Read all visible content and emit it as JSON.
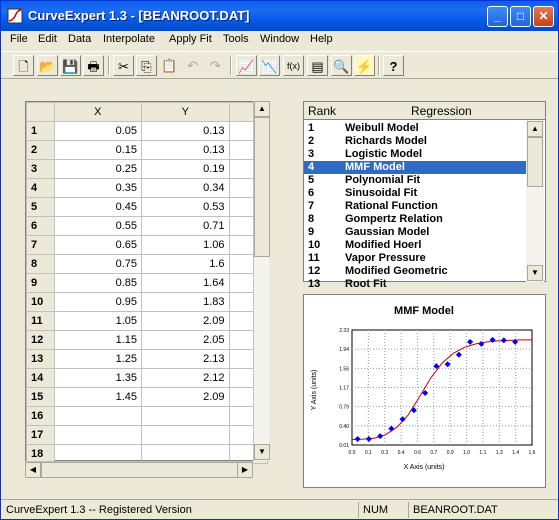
{
  "window": {
    "title": "CurveExpert 1.3 - [BEANROOT.DAT]"
  },
  "menu": [
    "File",
    "Edit",
    "Data",
    "Interpolate",
    "Apply Fit",
    "Tools",
    "Window",
    "Help"
  ],
  "toolbar": {
    "icons": [
      "new-file-icon",
      "open-folder-icon",
      "save-icon",
      "print-icon",
      "cut-icon",
      "copy-icon",
      "paste-icon",
      "undo-icon",
      "redo-icon",
      "linear-fit-icon",
      "polynomial-fit-icon",
      "function-fit-icon",
      "plot-tool-icon",
      "zoom-plot-icon",
      "curve-finder-icon",
      "help-icon"
    ]
  },
  "grid": {
    "headers": [
      "X",
      "Y"
    ],
    "rows": [
      {
        "n": "1",
        "x": "0.05",
        "y": "0.13"
      },
      {
        "n": "2",
        "x": "0.15",
        "y": "0.13"
      },
      {
        "n": "3",
        "x": "0.25",
        "y": "0.19"
      },
      {
        "n": "4",
        "x": "0.35",
        "y": "0.34"
      },
      {
        "n": "5",
        "x": "0.45",
        "y": "0.53"
      },
      {
        "n": "6",
        "x": "0.55",
        "y": "0.71"
      },
      {
        "n": "7",
        "x": "0.65",
        "y": "1.06"
      },
      {
        "n": "8",
        "x": "0.75",
        "y": "1.6"
      },
      {
        "n": "9",
        "x": "0.85",
        "y": "1.64"
      },
      {
        "n": "10",
        "x": "0.95",
        "y": "1.83"
      },
      {
        "n": "11",
        "x": "1.05",
        "y": "2.09"
      },
      {
        "n": "12",
        "x": "1.15",
        "y": "2.05"
      },
      {
        "n": "13",
        "x": "1.25",
        "y": "2.13"
      },
      {
        "n": "14",
        "x": "1.35",
        "y": "2.12"
      },
      {
        "n": "15",
        "x": "1.45",
        "y": "2.09"
      },
      {
        "n": "16",
        "x": "",
        "y": ""
      },
      {
        "n": "17",
        "x": "",
        "y": ""
      },
      {
        "n": "18",
        "x": "",
        "y": ""
      }
    ]
  },
  "ranking": {
    "rank_header": "Rank",
    "regression_header": "Regression",
    "selected": "4",
    "items": [
      {
        "rank": "1",
        "name": "Weibull Model"
      },
      {
        "rank": "2",
        "name": "Richards Model"
      },
      {
        "rank": "3",
        "name": "Logistic Model"
      },
      {
        "rank": "4",
        "name": "MMF Model"
      },
      {
        "rank": "5",
        "name": "Polynomial Fit"
      },
      {
        "rank": "6",
        "name": "Sinusoidal Fit"
      },
      {
        "rank": "7",
        "name": "Rational Function"
      },
      {
        "rank": "8",
        "name": "Gompertz Relation"
      },
      {
        "rank": "9",
        "name": "Gaussian Model"
      },
      {
        "rank": "10",
        "name": "Modified Hoerl"
      },
      {
        "rank": "11",
        "name": "Vapor Pressure"
      },
      {
        "rank": "12",
        "name": "Modified Geometric"
      },
      {
        "rank": "13",
        "name": "Root Fit"
      }
    ]
  },
  "chart_data": {
    "type": "scatter",
    "title": "MMF Model",
    "xlabel": "X Axis (units)",
    "ylabel": "Y Axis (units)",
    "xlim": [
      0.0,
      1.6
    ],
    "ylim": [
      0.01,
      2.33
    ],
    "xticks": [
      "0.0",
      "0.1",
      "0.3",
      "0.4",
      "0.6",
      "0.7",
      "0.9",
      "1.0",
      "1.1",
      "1.3",
      "1.4",
      "1.6"
    ],
    "yticks": [
      "0.01",
      "0.40",
      "0.79",
      "1.17",
      "1.56",
      "1.94",
      "2.33"
    ],
    "grid": true,
    "series": [
      {
        "type": "points",
        "color": "#0000ff",
        "x": [
          0.05,
          0.15,
          0.25,
          0.35,
          0.45,
          0.55,
          0.65,
          0.75,
          0.85,
          0.95,
          1.05,
          1.15,
          1.25,
          1.35,
          1.45
        ],
        "y": [
          0.13,
          0.13,
          0.19,
          0.34,
          0.53,
          0.71,
          1.06,
          1.6,
          1.64,
          1.83,
          2.09,
          2.05,
          2.13,
          2.12,
          2.09
        ]
      },
      {
        "type": "line",
        "color": "#cc0000",
        "x": [
          0.0,
          0.1,
          0.2,
          0.3,
          0.4,
          0.5,
          0.6,
          0.7,
          0.8,
          0.9,
          1.0,
          1.1,
          1.2,
          1.3,
          1.4,
          1.5,
          1.6
        ],
        "y": [
          0.12,
          0.13,
          0.15,
          0.22,
          0.37,
          0.62,
          0.98,
          1.36,
          1.66,
          1.86,
          1.98,
          2.05,
          2.09,
          2.11,
          2.12,
          2.13,
          2.13
        ]
      }
    ]
  },
  "status": {
    "left": "CurveExpert 1.3 -- Registered Version",
    "num": "NUM",
    "file": "BEANROOT.DAT"
  }
}
